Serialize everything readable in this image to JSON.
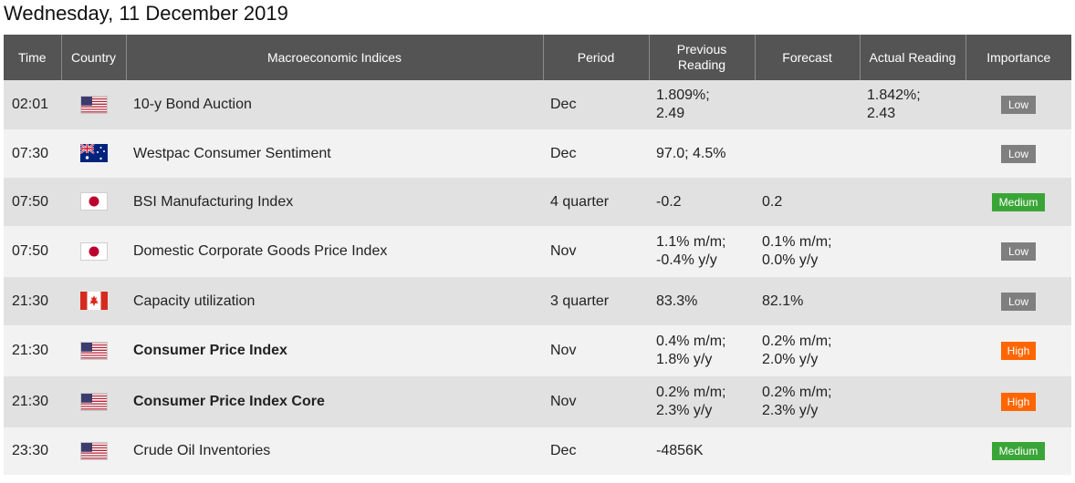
{
  "page": {
    "title": "Wednesday, 11 December 2019"
  },
  "table": {
    "headers": {
      "time": "Time",
      "country": "Country",
      "indices": "Macroeconomic Indices",
      "period": "Period",
      "previous_line1": "Previous",
      "previous_line2": "Reading",
      "forecast": "Forecast",
      "actual": "Actual Reading",
      "importance": "Importance"
    },
    "colors": {
      "header_bg": "#545454",
      "row_odd": "#e1e1e1",
      "row_even": "#f2f2f2",
      "low": "#7f7f7f",
      "medium": "#3aa537",
      "high": "#ff6600"
    },
    "rows": [
      {
        "time": "02:01",
        "country": "us-flag-icon",
        "index": "10-y Bond Auction",
        "bold": false,
        "period": "Dec",
        "previous": [
          "1.809%;",
          "2.49"
        ],
        "forecast": [],
        "actual": [
          "1.842%;",
          "2.43"
        ],
        "importance": "Low",
        "level": "low"
      },
      {
        "time": "07:30",
        "country": "au-flag-icon",
        "index": "Westpac Consumer Sentiment",
        "bold": false,
        "period": "Dec",
        "previous": [
          "97.0; 4.5%"
        ],
        "forecast": [],
        "actual": [],
        "importance": "Low",
        "level": "low"
      },
      {
        "time": "07:50",
        "country": "jp-flag-icon",
        "index": "BSI Manufacturing Index",
        "bold": false,
        "period": "4 quarter",
        "previous": [
          "-0.2"
        ],
        "forecast": [
          "0.2"
        ],
        "actual": [],
        "importance": "Medium",
        "level": "medium"
      },
      {
        "time": "07:50",
        "country": "jp-flag-icon",
        "index": "Domestic Corporate Goods Price Index",
        "bold": false,
        "period": "Nov",
        "previous": [
          "1.1% m/m;",
          "-0.4% y/y"
        ],
        "forecast": [
          "0.1% m/m;",
          "0.0% y/y"
        ],
        "actual": [],
        "importance": "Low",
        "level": "low"
      },
      {
        "time": "21:30",
        "country": "ca-flag-icon",
        "index": "Capacity utilization",
        "bold": false,
        "period": "3 quarter",
        "previous": [
          "83.3%"
        ],
        "forecast": [
          "82.1%"
        ],
        "actual": [],
        "importance": "Low",
        "level": "low"
      },
      {
        "time": "21:30",
        "country": "us-flag-icon",
        "index": "Consumer Price Index",
        "bold": true,
        "period": "Nov",
        "previous": [
          "0.4% m/m;",
          "1.8% y/y"
        ],
        "forecast": [
          "0.2% m/m;",
          "2.0% y/y"
        ],
        "actual": [],
        "importance": "High",
        "level": "high"
      },
      {
        "time": "21:30",
        "country": "us-flag-icon",
        "index": "Consumer Price Index Core",
        "bold": true,
        "period": "Nov",
        "previous": [
          "0.2% m/m;",
          "2.3% y/y"
        ],
        "forecast": [
          "0.2% m/m;",
          "2.3% y/y"
        ],
        "actual": [],
        "importance": "High",
        "level": "high"
      },
      {
        "time": "23:30",
        "country": "us-flag-icon",
        "index": "Crude Oil Inventories",
        "bold": false,
        "period": "Dec",
        "previous": [
          "-4856K"
        ],
        "forecast": [],
        "actual": [],
        "importance": "Medium",
        "level": "medium"
      }
    ]
  }
}
